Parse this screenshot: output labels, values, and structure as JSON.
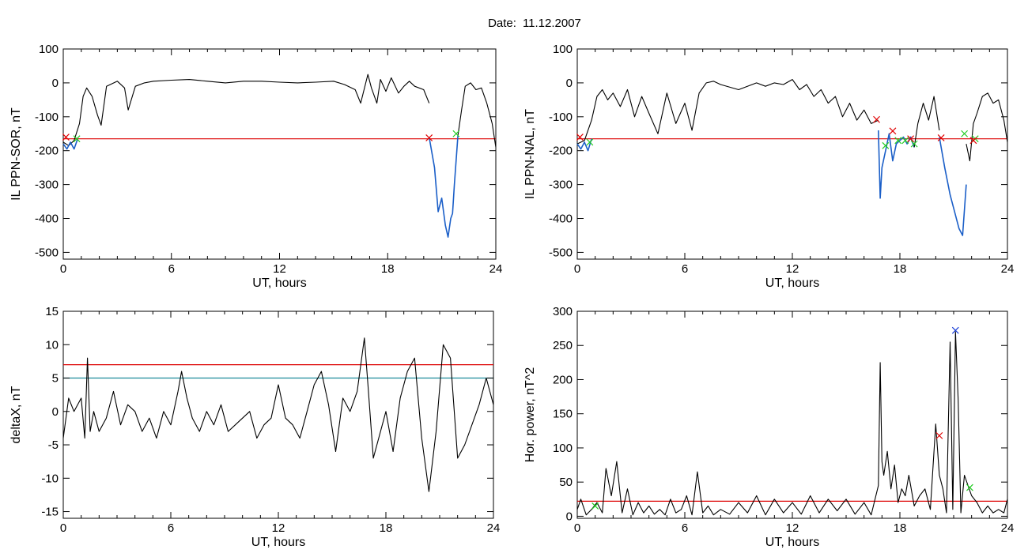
{
  "figure": {
    "title_prefix": "Date:",
    "date": "11.12.2007"
  },
  "colors": {
    "trace": "#000000",
    "threshold_red": "#dd0000",
    "threshold_teal": "#1a8a9a",
    "activity_blue": "#1b5fc8",
    "marker_red": "#e00000",
    "marker_green": "#22cc22",
    "marker_blue": "#1b3fd8"
  },
  "chart_data": [
    {
      "type": "line",
      "id": "panel-ppn-sor",
      "xlabel": "UT, hours",
      "ylabel": "IL PPN-SOR, nT",
      "xlim": [
        0,
        24
      ],
      "ylim": [
        -520,
        100
      ],
      "xticks": [
        0,
        6,
        12,
        18,
        24
      ],
      "yticks": [
        100,
        0,
        -100,
        -200,
        -300,
        -400,
        -500
      ],
      "grid": false,
      "thresholds": [
        {
          "y": -165,
          "color": "red"
        }
      ],
      "series": [
        {
          "style": "black",
          "x": [
            0,
            0.3,
            0.6,
            0.9,
            1.1,
            1.3,
            1.6,
            1.9,
            2.1,
            2.4,
            3,
            3.4,
            3.6,
            4,
            4.5,
            5,
            6,
            7,
            8,
            9,
            10,
            11,
            12,
            13,
            14,
            15,
            15.6,
            16.2,
            16.5,
            16.9,
            17.1,
            17.4,
            17.6,
            17.9,
            18.2,
            18.6,
            18.9,
            19.2,
            19.5,
            20,
            20.3
          ],
          "y": [
            -175,
            -185,
            -170,
            -120,
            -40,
            -15,
            -40,
            -95,
            -125,
            -10,
            5,
            -15,
            -80,
            -10,
            0,
            5,
            8,
            10,
            5,
            0,
            5,
            5,
            2,
            0,
            2,
            5,
            -5,
            -20,
            -60,
            25,
            -15,
            -60,
            10,
            -25,
            15,
            -30,
            -10,
            5,
            -10,
            -20,
            -60
          ]
        },
        {
          "style": "blue",
          "x": [
            20.3,
            20.6,
            20.8,
            21,
            21.2,
            21.35,
            21.5,
            21.6,
            21.7,
            21.9
          ],
          "y": [
            -160,
            -250,
            -380,
            -340,
            -420,
            -455,
            -400,
            -385,
            -300,
            -155
          ]
        },
        {
          "style": "black",
          "x": [
            21.9,
            22.1,
            22.3,
            22.6,
            22.9,
            23.2,
            23.5,
            23.8,
            24
          ],
          "y": [
            -155,
            -80,
            -10,
            0,
            -20,
            -15,
            -60,
            -120,
            -190
          ]
        },
        {
          "style": "blue",
          "x": [
            0,
            0.2,
            0.4,
            0.6,
            0.8
          ],
          "y": [
            -180,
            -195,
            -175,
            -195,
            -165
          ]
        }
      ],
      "markers": [
        {
          "x": 0.15,
          "y": -160,
          "color": "red"
        },
        {
          "x": 0.75,
          "y": -165,
          "color": "green"
        },
        {
          "x": 20.3,
          "y": -162,
          "color": "red"
        },
        {
          "x": 21.8,
          "y": -150,
          "color": "green"
        }
      ]
    },
    {
      "type": "line",
      "id": "panel-ppn-nal",
      "xlabel": "UT, hours",
      "ylabel": "IL PPN-NAL, nT",
      "xlim": [
        0,
        24
      ],
      "ylim": [
        -520,
        100
      ],
      "xticks": [
        0,
        6,
        12,
        18,
        24
      ],
      "yticks": [
        100,
        0,
        -100,
        -200,
        -300,
        -400,
        -500
      ],
      "grid": false,
      "thresholds": [
        {
          "y": -165,
          "color": "red"
        }
      ],
      "series": [
        {
          "style": "black",
          "x": [
            0,
            0.4,
            0.8,
            1.1,
            1.4,
            1.7,
            2,
            2.4,
            2.8,
            3.2,
            3.6,
            4.0,
            4.5,
            5,
            5.5,
            6,
            6.4,
            6.8,
            7.2,
            7.6,
            8,
            9,
            10,
            10.5,
            11,
            11.5,
            12,
            12.4,
            12.8,
            13.2,
            13.6,
            14,
            14.4,
            14.8,
            15.2,
            15.6,
            16,
            16.4,
            16.8
          ],
          "y": [
            -180,
            -170,
            -110,
            -40,
            -20,
            -50,
            -30,
            -70,
            -20,
            -100,
            -40,
            -90,
            -150,
            -30,
            -120,
            -60,
            -140,
            -30,
            0,
            5,
            -5,
            -20,
            0,
            -10,
            0,
            -5,
            10,
            -20,
            -5,
            -40,
            -20,
            -60,
            -40,
            -100,
            -60,
            -110,
            -80,
            -120,
            -110
          ]
        },
        {
          "style": "blue",
          "x": [
            16.8,
            16.9,
            17.0,
            17.2,
            17.4,
            17.6,
            17.8,
            18.0,
            18.2,
            18.4,
            18.6,
            18.8
          ],
          "y": [
            -140,
            -340,
            -250,
            -200,
            -150,
            -230,
            -180,
            -170,
            -160,
            -180,
            -160,
            -190
          ]
        },
        {
          "style": "black",
          "x": [
            18.8,
            19.0,
            19.3,
            19.6,
            19.9,
            20.2
          ],
          "y": [
            -190,
            -120,
            -60,
            -110,
            -40,
            -140
          ]
        },
        {
          "style": "blue",
          "x": [
            20.2,
            20.5,
            20.8,
            21.0,
            21.3,
            21.5,
            21.7
          ],
          "y": [
            -160,
            -250,
            -330,
            -370,
            -430,
            -450,
            -300
          ]
        },
        {
          "style": "black",
          "x": [
            21.7,
            21.9,
            22.1,
            22.3,
            22.6,
            22.9,
            23.2,
            23.5,
            23.8,
            24
          ],
          "y": [
            -180,
            -230,
            -120,
            -90,
            -40,
            -30,
            -60,
            -50,
            -110,
            -175
          ]
        },
        {
          "style": "blue",
          "x": [
            0,
            0.2,
            0.4,
            0.6,
            0.8
          ],
          "y": [
            -180,
            -195,
            -175,
            -200,
            -165
          ]
        }
      ],
      "markers": [
        {
          "x": 0.15,
          "y": -160,
          "color": "red"
        },
        {
          "x": 0.7,
          "y": -175,
          "color": "green"
        },
        {
          "x": 16.7,
          "y": -108,
          "color": "red"
        },
        {
          "x": 17.2,
          "y": -185,
          "color": "green"
        },
        {
          "x": 17.6,
          "y": -142,
          "color": "red"
        },
        {
          "x": 17.9,
          "y": -170,
          "color": "green"
        },
        {
          "x": 18.3,
          "y": -170,
          "color": "green"
        },
        {
          "x": 18.6,
          "y": -165,
          "color": "red"
        },
        {
          "x": 18.8,
          "y": -180,
          "color": "green"
        },
        {
          "x": 20.3,
          "y": -162,
          "color": "red"
        },
        {
          "x": 21.6,
          "y": -150,
          "color": "green"
        },
        {
          "x": 22.2,
          "y": -165,
          "color": "green"
        },
        {
          "x": 22.1,
          "y": -170,
          "color": "red"
        }
      ]
    },
    {
      "type": "line",
      "id": "panel-deltax",
      "xlabel": "UT, hours",
      "ylabel": "deltaX, nT",
      "xlim": [
        0,
        24
      ],
      "ylim": [
        -16,
        15
      ],
      "xticks": [
        0,
        6,
        12,
        18,
        24
      ],
      "yticks": [
        15,
        10,
        5,
        0,
        -5,
        -10,
        -15
      ],
      "grid": false,
      "thresholds": [
        {
          "y": 7,
          "color": "red"
        },
        {
          "y": 5,
          "color": "teal"
        }
      ],
      "series": [
        {
          "style": "black",
          "x": [
            0,
            0.3,
            0.6,
            1.0,
            1.2,
            1.35,
            1.5,
            1.7,
            2.0,
            2.4,
            2.8,
            3.2,
            3.6,
            4.0,
            4.4,
            4.8,
            5.2,
            5.6,
            6.0,
            6.4,
            6.6,
            6.9,
            7.2,
            7.6,
            8.0,
            8.4,
            8.8,
            9.2,
            9.6,
            10.0,
            10.4,
            10.8,
            11.2,
            11.6,
            12.0,
            12.4,
            12.8,
            13.2,
            13.6,
            14.0,
            14.4,
            14.8,
            15.2,
            15.6,
            16.0,
            16.4,
            16.8,
            17.0,
            17.3,
            17.6,
            18.0,
            18.4,
            18.8,
            19.2,
            19.6,
            20.0,
            20.4,
            20.8,
            21.2,
            21.6,
            22.0,
            22.4,
            22.8,
            23.2,
            23.6,
            24.0
          ],
          "y": [
            -4,
            2,
            0,
            2,
            -4,
            8,
            -3,
            0,
            -3,
            -1,
            3,
            -2,
            1,
            0,
            -3,
            -1,
            -4,
            0,
            -2,
            3,
            6,
            2,
            -1,
            -3,
            0,
            -2,
            1,
            -3,
            -2,
            -1,
            0,
            -4,
            -2,
            -1,
            4,
            -1,
            -2,
            -4,
            0,
            4,
            6,
            1,
            -6,
            2,
            0,
            3,
            11,
            4,
            -7,
            -4,
            0,
            -6,
            2,
            6,
            8,
            -4,
            -12,
            -3,
            10,
            8,
            -7,
            -5,
            -2,
            1,
            5,
            1
          ]
        }
      ],
      "markers": []
    },
    {
      "type": "line",
      "id": "panel-hor-power",
      "xlabel": "UT, hours",
      "ylabel": "Hor. power, nT^2",
      "xlim": [
        0,
        24
      ],
      "ylim": [
        -3,
        300
      ],
      "xticks": [
        0,
        6,
        12,
        18,
        24
      ],
      "yticks": [
        300,
        250,
        200,
        150,
        100,
        50,
        0
      ],
      "grid": false,
      "thresholds": [
        {
          "y": 22,
          "color": "red"
        }
      ],
      "series": [
        {
          "style": "black",
          "x": [
            0,
            0.2,
            0.5,
            0.8,
            1.1,
            1.4,
            1.6,
            1.9,
            2.2,
            2.5,
            2.8,
            3.1,
            3.4,
            3.7,
            4.0,
            4.3,
            4.6,
            4.9,
            5.2,
            5.5,
            5.8,
            6.1,
            6.4,
            6.7,
            7.0,
            7.3,
            7.6,
            8.0,
            8.5,
            9.0,
            9.5,
            10.0,
            10.5,
            11.0,
            11.5,
            12.0,
            12.5,
            13.0,
            13.5,
            14.0,
            14.5,
            15.0,
            15.5,
            16.0,
            16.4,
            16.8,
            16.9,
            17.0,
            17.1,
            17.3,
            17.5,
            17.7,
            17.9,
            18.1,
            18.3,
            18.5,
            18.8,
            19.1,
            19.4,
            19.7,
            20.0,
            20.2,
            20.4,
            20.6,
            20.8,
            20.95,
            21.1,
            21.25,
            21.4,
            21.6,
            21.8,
            22.0,
            22.3,
            22.6,
            22.9,
            23.2,
            23.5,
            23.8,
            24.0
          ],
          "y": [
            10,
            25,
            2,
            10,
            20,
            5,
            70,
            30,
            80,
            5,
            40,
            2,
            20,
            5,
            15,
            3,
            10,
            2,
            25,
            5,
            10,
            30,
            2,
            65,
            5,
            15,
            2,
            10,
            3,
            20,
            5,
            30,
            2,
            25,
            5,
            20,
            3,
            30,
            5,
            25,
            8,
            25,
            3,
            20,
            2,
            45,
            225,
            80,
            60,
            95,
            40,
            75,
            20,
            40,
            30,
            60,
            15,
            30,
            40,
            10,
            135,
            60,
            40,
            5,
            255,
            10,
            270,
            170,
            5,
            60,
            45,
            30,
            20,
            5,
            15,
            5,
            10,
            5,
            25
          ]
        }
      ],
      "markers": [
        {
          "x": 1.0,
          "y": 15,
          "color": "green"
        },
        {
          "x": 20.2,
          "y": 118,
          "color": "red"
        },
        {
          "x": 21.1,
          "y": 272,
          "color": "blue"
        },
        {
          "x": 21.9,
          "y": 42,
          "color": "green"
        }
      ]
    }
  ]
}
